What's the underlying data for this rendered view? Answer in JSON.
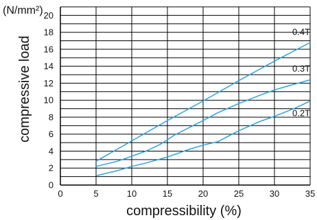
{
  "chart_data": {
    "type": "line",
    "xlabel": "compressibility  (%)",
    "ylabel": "compressive load",
    "y_unit": "(N/mm²)",
    "xlim": [
      0,
      35
    ],
    "ylim": [
      0,
      21
    ],
    "x_ticks": [
      0,
      5,
      10,
      15,
      20,
      25,
      30,
      35
    ],
    "y_ticks": [
      0,
      2,
      4,
      6,
      8,
      10,
      12,
      14,
      16,
      18,
      20
    ],
    "grid": true,
    "line_color": "#29a3e0",
    "series": [
      {
        "name": "0.4T",
        "x": [
          5,
          10,
          15,
          20,
          25,
          30,
          35
        ],
        "y": [
          2.8,
          5.2,
          7.6,
          9.9,
          12.3,
          14.6,
          16.8
        ]
      },
      {
        "name": "0.3T",
        "x": [
          5,
          8,
          12,
          14,
          16,
          20,
          22,
          25,
          28,
          30,
          32,
          35
        ],
        "y": [
          2.2,
          2.8,
          4.0,
          4.8,
          5.9,
          7.6,
          8.5,
          9.6,
          10.6,
          11.2,
          11.7,
          12.4
        ]
      },
      {
        "name": "0.2T",
        "x": [
          5,
          8,
          10,
          12,
          15,
          18,
          20,
          22,
          25,
          28,
          30,
          33,
          35
        ],
        "y": [
          1.1,
          1.7,
          2.2,
          2.6,
          3.3,
          4.2,
          4.7,
          5.1,
          6.4,
          7.5,
          8.1,
          9.1,
          9.9
        ]
      }
    ]
  }
}
